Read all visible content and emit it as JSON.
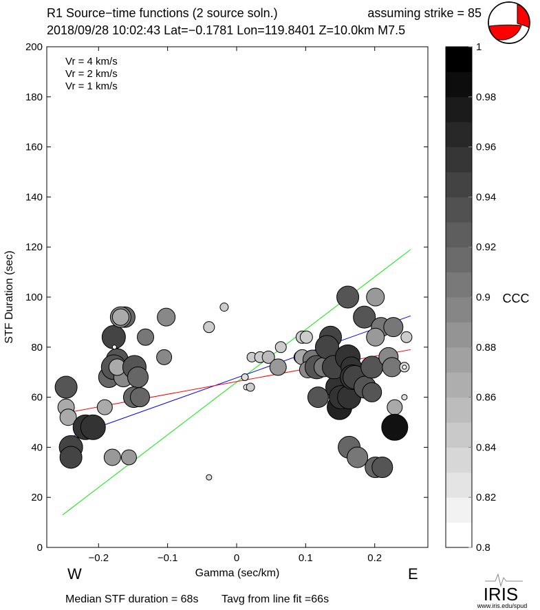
{
  "header": {
    "title": "R1 Source−time functions (2 source soln.)",
    "strike": "assuming strike = 85",
    "event": "2018/09/28 10:02:43  Lat=−0.1781 Lon=119.8401  Z=10.0km  M7.5"
  },
  "footer": {
    "median": "Median STF duration = 68s",
    "tavg": "Tavg from line fit =66s",
    "logo_text": "IRIS",
    "logo_url": "www.iris.edu/spud"
  },
  "colors": {
    "vr4": "#00ee00",
    "vr2": "#0000ff",
    "vr1": "#ff0000",
    "beachball": "#ff0000"
  },
  "chart_data": {
    "type": "scatter",
    "xlabel": "Gamma (sec/km)",
    "ylabel": "STF Duration (sec)",
    "xlim": [
      -0.275,
      0.277
    ],
    "ylim": [
      0,
      200
    ],
    "xticks": [
      -0.2,
      -0.1,
      0,
      0.1,
      0.2
    ],
    "xtick_labels": [
      "−0.2",
      "−0.1",
      "0",
      "0.1",
      "0.2"
    ],
    "yticks": [
      0,
      20,
      40,
      60,
      80,
      100,
      120,
      140,
      160,
      180,
      200
    ],
    "ytick_labels": [
      "0",
      "20",
      "40",
      "60",
      "80",
      "100",
      "120",
      "140",
      "160",
      "180",
      "200"
    ],
    "west_label": "W",
    "east_label": "E",
    "legend": [
      {
        "label": "Vr = 4 km/s",
        "color": "#00ee00"
      },
      {
        "label": "Vr = 2 km/s",
        "color": "#0000ff"
      },
      {
        "label": "Vr = 1 km/s",
        "color": "#ff0000"
      }
    ],
    "lines": [
      {
        "name": "Vr = 4 km/s",
        "x": [
          -0.252,
          0.252
        ],
        "y": [
          13,
          119
        ]
      },
      {
        "name": "Vr = 2 km/s",
        "x": [
          -0.252,
          0.252
        ],
        "y": [
          43,
          92.5
        ]
      },
      {
        "name": "Vr = 1 km/s",
        "x": [
          -0.252,
          0.252
        ],
        "y": [
          53.5,
          79
        ]
      }
    ],
    "colorbar": {
      "label": "CCC",
      "range": [
        0.8,
        1
      ],
      "bins": 20,
      "ticks": [
        0.8,
        0.82,
        0.84,
        0.86,
        0.88,
        0.9,
        0.92,
        0.94,
        0.96,
        0.98,
        1
      ],
      "tick_labels": [
        "0.8",
        "0.82",
        "0.84",
        "0.86",
        "0.88",
        "0.9",
        "0.92",
        "0.94",
        "0.96",
        "0.98",
        "1"
      ]
    },
    "points_fields": [
      "gamma",
      "duration",
      "weight",
      "ccc"
    ],
    "points": [
      [
        -0.247,
        64,
        16,
        0.933
      ],
      [
        -0.247,
        56,
        12,
        0.867
      ],
      [
        -0.244,
        52,
        12,
        0.867
      ],
      [
        -0.24,
        40,
        17,
        0.947
      ],
      [
        -0.24,
        36,
        16,
        0.947
      ],
      [
        -0.219,
        48,
        18,
        0.96
      ],
      [
        -0.208,
        48,
        18,
        0.96
      ],
      [
        -0.191,
        56,
        11,
        0.867
      ],
      [
        -0.18,
        36,
        12,
        0.88
      ],
      [
        -0.156,
        36,
        11,
        0.88
      ],
      [
        -0.178,
        84,
        17,
        0.947
      ],
      [
        -0.173,
        75,
        16,
        0.933
      ],
      [
        -0.162,
        92,
        15,
        0.92
      ],
      [
        -0.168,
        92,
        15,
        0.893
      ],
      [
        -0.168,
        92,
        12,
        0.867
      ],
      [
        -0.185,
        68,
        15,
        0.92
      ],
      [
        -0.178,
        72,
        18,
        0.933
      ],
      [
        -0.164,
        68,
        14,
        0.893
      ],
      [
        -0.173,
        72,
        12,
        0.867
      ],
      [
        -0.148,
        72,
        17,
        0.933
      ],
      [
        -0.143,
        68,
        15,
        0.92
      ],
      [
        -0.149,
        60,
        15,
        0.92
      ],
      [
        -0.14,
        60,
        14,
        0.92
      ],
      [
        -0.177,
        80,
        3,
        0.8
      ],
      [
        -0.132,
        84,
        12,
        0.907
      ],
      [
        -0.102,
        92,
        13,
        0.893
      ],
      [
        -0.105,
        76,
        11,
        0.893
      ],
      [
        -0.04,
        88,
        8,
        0.84
      ],
      [
        -0.018,
        96,
        6,
        0.84
      ],
      [
        -0.04,
        28,
        4,
        0.827
      ],
      [
        0.012,
        68,
        5,
        0.827
      ],
      [
        0.014,
        64,
        4,
        0.813
      ],
      [
        0.02,
        64,
        6,
        0.84
      ],
      [
        0.022,
        76,
        7,
        0.84
      ],
      [
        0.034,
        76,
        8,
        0.84
      ],
      [
        0.046,
        76,
        9,
        0.853
      ],
      [
        0.06,
        72,
        12,
        0.88
      ],
      [
        0.064,
        80,
        8,
        0.84
      ],
      [
        0.092,
        76,
        9,
        0.84
      ],
      [
        0.095,
        84,
        9,
        0.84
      ],
      [
        0.101,
        84,
        9,
        0.84
      ],
      [
        0.095,
        76,
        11,
        0.867
      ],
      [
        0.11,
        75,
        14,
        0.907
      ],
      [
        0.103,
        71,
        12,
        0.893
      ],
      [
        0.116,
        72,
        17,
        0.933
      ],
      [
        0.126,
        72,
        14,
        0.907
      ],
      [
        0.118,
        60,
        15,
        0.933
      ],
      [
        0.136,
        84,
        16,
        0.947
      ],
      [
        0.131,
        80,
        17,
        0.947
      ],
      [
        0.146,
        64,
        17,
        0.96
      ],
      [
        0.149,
        56,
        18,
        0.973
      ],
      [
        0.151,
        60,
        17,
        0.96
      ],
      [
        0.163,
        60,
        17,
        0.96
      ],
      [
        0.141,
        72,
        17,
        0.947
      ],
      [
        0.161,
        76,
        18,
        0.96
      ],
      [
        0.166,
        72,
        15,
        0.96
      ],
      [
        0.168,
        68,
        18,
        0.96
      ],
      [
        0.171,
        68,
        17,
        0.947
      ],
      [
        0.186,
        64,
        16,
        0.933
      ],
      [
        0.196,
        62,
        14,
        0.933
      ],
      [
        0.196,
        72,
        16,
        0.933
      ],
      [
        0.161,
        100,
        16,
        0.933
      ],
      [
        0.201,
        100,
        13,
        0.88
      ],
      [
        0.185,
        92,
        16,
        0.933
      ],
      [
        0.209,
        88,
        14,
        0.907
      ],
      [
        0.227,
        88,
        14,
        0.907
      ],
      [
        0.201,
        84,
        13,
        0.88
      ],
      [
        0.246,
        84,
        8,
        0.84
      ],
      [
        0.22,
        76,
        14,
        0.893
      ],
      [
        0.225,
        72,
        14,
        0.907
      ],
      [
        0.243,
        72,
        7,
        0.827
      ],
      [
        0.243,
        72,
        3,
        0.8
      ],
      [
        0.243,
        60,
        4,
        0.827
      ],
      [
        0.229,
        56,
        11,
        0.867
      ],
      [
        0.229,
        48,
        19,
        0.987
      ],
      [
        0.163,
        40,
        16,
        0.92
      ],
      [
        0.175,
        36,
        15,
        0.907
      ],
      [
        0.201,
        32,
        15,
        0.92
      ],
      [
        0.211,
        32,
        15,
        0.933
      ]
    ]
  }
}
